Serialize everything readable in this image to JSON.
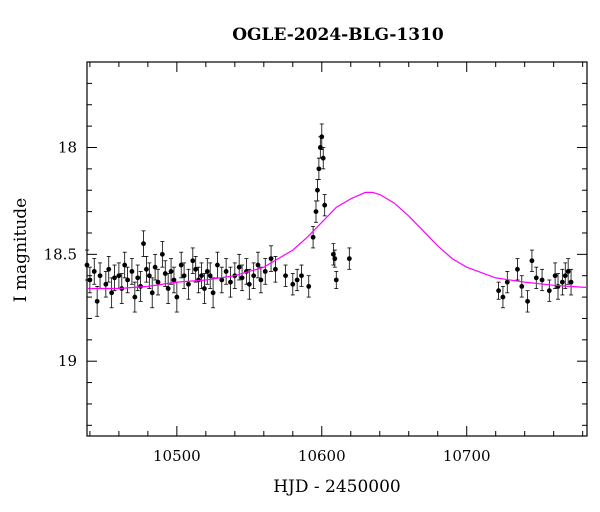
{
  "chart_data": {
    "type": "scatter",
    "title": "OGLE-2024-BLG-1310",
    "xlabel": "HJD - 2450000",
    "ylabel": "I magnitude",
    "xlim": [
      10438,
      10783
    ],
    "ylim": [
      19.35,
      17.6
    ],
    "y_inverted": true,
    "x_ticks": [
      10500,
      10600,
      10700
    ],
    "x_tick_labels": [
      "10500",
      "10600",
      "10700"
    ],
    "y_ticks": [
      18,
      18.5,
      19
    ],
    "y_tick_labels": [
      "18",
      "18.5",
      "19"
    ],
    "grid": false,
    "legend": "none",
    "series": [
      {
        "kind": "points_with_errorbars",
        "color": "#000000",
        "x": [
          10438,
          10440,
          10443,
          10445,
          10447,
          10451,
          10453,
          10455,
          10457,
          10460,
          10462,
          10464,
          10466,
          10469,
          10471,
          10473,
          10475,
          10477,
          10479,
          10481,
          10483,
          10485,
          10487,
          10490,
          10492,
          10494,
          10496,
          10498,
          10500,
          10503,
          10505,
          10508,
          10511,
          10513,
          10515,
          10517,
          10519,
          10521,
          10523,
          10525,
          10528,
          10531,
          10534,
          10537,
          10540,
          10543,
          10545,
          10548,
          10550,
          10553,
          10556,
          10558,
          10561,
          10565,
          10568,
          10575,
          10580,
          10583,
          10586,
          10591,
          10594,
          10596,
          10597,
          10598,
          10599,
          10600,
          10601,
          10602,
          10608,
          10609,
          10610,
          10619,
          10722,
          10725,
          10728,
          10735,
          10738,
          10742,
          10745,
          10748,
          10752,
          10757,
          10761,
          10763,
          10766,
          10768,
          10770,
          10772
        ],
        "y": [
          18.55,
          18.62,
          18.58,
          18.72,
          18.6,
          18.64,
          18.57,
          18.68,
          18.61,
          18.6,
          18.66,
          18.55,
          18.62,
          18.58,
          18.7,
          18.61,
          18.65,
          18.45,
          18.57,
          18.6,
          18.68,
          18.56,
          18.63,
          18.5,
          18.59,
          18.66,
          18.58,
          18.62,
          18.7,
          18.55,
          18.6,
          18.64,
          18.53,
          18.57,
          18.62,
          18.6,
          18.66,
          18.58,
          18.6,
          18.68,
          18.55,
          18.62,
          18.58,
          18.63,
          18.6,
          18.56,
          18.61,
          18.58,
          18.64,
          18.6,
          18.55,
          18.62,
          18.58,
          18.52,
          18.57,
          18.6,
          18.64,
          18.62,
          18.6,
          18.65,
          18.42,
          18.3,
          18.2,
          18.1,
          18.0,
          17.95,
          18.05,
          18.27,
          18.5,
          18.52,
          18.62,
          18.52,
          18.67,
          18.7,
          18.63,
          18.57,
          18.65,
          18.72,
          18.53,
          18.61,
          18.62,
          18.67,
          18.6,
          18.65,
          18.63,
          18.6,
          18.58,
          18.63
        ],
        "err": [
          0.07,
          0.06,
          0.06,
          0.07,
          0.06,
          0.06,
          0.06,
          0.07,
          0.06,
          0.06,
          0.07,
          0.06,
          0.06,
          0.06,
          0.07,
          0.06,
          0.07,
          0.06,
          0.06,
          0.06,
          0.07,
          0.06,
          0.06,
          0.06,
          0.06,
          0.07,
          0.06,
          0.06,
          0.07,
          0.06,
          0.06,
          0.07,
          0.06,
          0.06,
          0.06,
          0.06,
          0.07,
          0.06,
          0.06,
          0.07,
          0.06,
          0.06,
          0.06,
          0.07,
          0.06,
          0.06,
          0.06,
          0.06,
          0.07,
          0.06,
          0.06,
          0.06,
          0.06,
          0.06,
          0.06,
          0.05,
          0.05,
          0.05,
          0.05,
          0.05,
          0.05,
          0.05,
          0.05,
          0.05,
          0.05,
          0.06,
          0.05,
          0.05,
          0.05,
          0.04,
          0.04,
          0.05,
          0.04,
          0.05,
          0.05,
          0.05,
          0.05,
          0.05,
          0.05,
          0.05,
          0.05,
          0.05,
          0.06,
          0.06,
          0.06,
          0.06,
          0.06,
          0.06
        ]
      },
      {
        "kind": "model_curve",
        "color": "#ff00ff",
        "x": [
          10438,
          10460,
          10480,
          10500,
          10520,
          10540,
          10560,
          10580,
          10590,
          10600,
          10610,
          10620,
          10630,
          10635,
          10640,
          10650,
          10660,
          10670,
          10680,
          10690,
          10700,
          10720,
          10740,
          10760,
          10783
        ],
        "y": [
          18.66,
          18.66,
          18.65,
          18.63,
          18.62,
          18.6,
          18.56,
          18.48,
          18.42,
          18.35,
          18.28,
          18.24,
          18.21,
          18.21,
          18.22,
          18.26,
          18.32,
          18.39,
          18.46,
          18.52,
          18.56,
          18.61,
          18.63,
          18.645,
          18.655
        ]
      }
    ]
  }
}
